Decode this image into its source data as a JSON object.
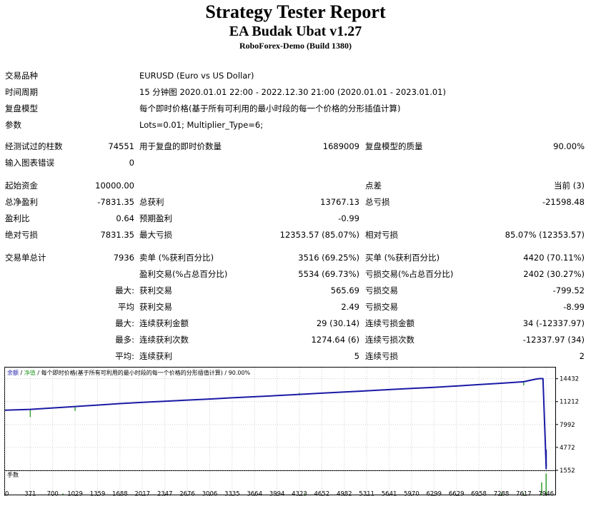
{
  "header": {
    "title": "Strategy Tester Report",
    "expert": "EA Budak Ubat v1.27",
    "server": "RoboForex-Demo (Build 1380)"
  },
  "settings": {
    "symbol_label": "交易品种",
    "symbol": "EURUSD (Euro vs US Dollar)",
    "period_label": "时间周期",
    "period": "15 分钟图 2020.01.01 22:00 - 2022.12.30 21:00 (2020.01.01 - 2023.01.01)",
    "model_label": "复盘模型",
    "model": "每个即时价格(基于所有可利用的最小时段的每一个价格的分形插值计算)",
    "params_label": "参数",
    "params": "Lots=0.01; Multiplier_Type=6;"
  },
  "quality": {
    "bars_label": "经测试过的柱数",
    "bars": "74551",
    "ticks_label": "用于复盘的即时价数量",
    "ticks": "1689009",
    "quality_label": "复盘模型的质量",
    "quality": "90.00%",
    "errors_label": "输入图表错误",
    "errors": "0"
  },
  "results": {
    "deposit_label": "起始资金",
    "deposit": "10000.00",
    "spread_label": "点差",
    "spread": "当前 (3)",
    "net_label": "总净盈利",
    "net": "-7831.35",
    "gross_profit_label": "总获利",
    "gross_profit": "13767.13",
    "gross_loss_label": "总亏损",
    "gross_loss": "-21598.48",
    "pf_label": "盈利比",
    "pf": "0.64",
    "payoff_label": "预期盈利",
    "payoff": "-0.99",
    "abs_dd_label": "绝对亏损",
    "abs_dd": "7831.35",
    "max_dd_label": "最大亏损",
    "max_dd": "12353.57 (85.07%)",
    "rel_dd_label": "相对亏损",
    "rel_dd": "85.07% (12353.57)"
  },
  "trades": {
    "total_label": "交易单总计",
    "total": "7936",
    "short_label": "卖单 (%获利百分比)",
    "short": "3516 (69.25%)",
    "long_label": "买单 (%获利百分比)",
    "long": "4420 (70.11%)",
    "win_label": "盈利交易(%占总百分比)",
    "win": "5534 (69.73%)",
    "loss_label": "亏损交易(%占总百分比)",
    "loss": "2402 (30.27%)",
    "largest_label": "最大:",
    "largest_win_label": "获利交易",
    "largest_win": "565.69",
    "largest_loss_label": "亏损交易",
    "largest_loss": "-799.52",
    "average_label": "平均",
    "avg_win_label": "获利交易",
    "avg_win": "2.49",
    "avg_loss_label": "亏损交易",
    "avg_loss": "-8.99",
    "max_label": "最大:",
    "max_consec_win_label": "连续获利金额",
    "max_consec_win": "29 (30.14)",
    "max_consec_loss_label": "连续亏损金额",
    "max_consec_loss": "34 (-12337.97)",
    "maximal_label": "最多:",
    "maximal_win_label": "连续获利次数",
    "maximal_win": "1274.64 (6)",
    "maximal_loss_label": "连续亏损次数",
    "maximal_loss": "-12337.97 (34)",
    "avgc_label": "平均:",
    "avgc_win_label": "连续获利",
    "avgc_win": "5",
    "avgc_loss_label": "连续亏损",
    "avgc_loss": "2"
  },
  "chart_data": {
    "type": "line",
    "legend": [
      "余额",
      "/",
      "净值",
      "/",
      "每个即时价格(基于所有可利用的最小时段的每一个价格的分形插值计算)",
      "/",
      "90.00%"
    ],
    "legend_colors": [
      "#1a1aa6",
      "#000000",
      "#2e9e2e",
      "#000000",
      "#000000",
      "#000000",
      "#000000"
    ],
    "balance_color": "#1a1aa6",
    "equity_color": "#2e9e2e",
    "volume_label": "手数",
    "ylim": [
      1552,
      16000
    ],
    "yticks": [
      14432,
      11212,
      7992,
      4772,
      1552
    ],
    "xlim": [
      0,
      8080
    ],
    "xticks": [
      0,
      371,
      700,
      1029,
      1359,
      1688,
      2017,
      2347,
      2676,
      3006,
      3335,
      3664,
      3994,
      4323,
      4652,
      4982,
      5311,
      5641,
      5970,
      6299,
      6629,
      6958,
      7288,
      7617,
      7946
    ],
    "balance": {
      "x": [
        0,
        371,
        700,
        1029,
        1359,
        1688,
        2017,
        2347,
        2676,
        3006,
        3335,
        3664,
        3994,
        4323,
        4652,
        4982,
        5311,
        5641,
        5970,
        6299,
        6629,
        6958,
        7288,
        7617,
        7700,
        7800,
        7860,
        7900,
        7946
      ],
      "y": [
        10000,
        10120,
        10320,
        10520,
        10720,
        10930,
        11100,
        11260,
        11420,
        11580,
        11750,
        11900,
        12060,
        12230,
        12400,
        12560,
        12730,
        12900,
        13060,
        13220,
        13400,
        13600,
        13790,
        14000,
        14180,
        14380,
        14450,
        14420,
        2170
      ]
    },
    "equity_drops": [
      {
        "x": 371,
        "y": 9050
      },
      {
        "x": 1029,
        "y": 9900
      },
      {
        "x": 4323,
        "y": 12450
      },
      {
        "x": 7288,
        "y": 13900
      },
      {
        "x": 7617,
        "y": 13500
      },
      {
        "x": 7946,
        "y": 1700
      }
    ],
    "volume_spikes": [
      {
        "x": 850,
        "v": 0.05
      },
      {
        "x": 4400,
        "v": 0.06
      },
      {
        "x": 7290,
        "v": 0.08
      },
      {
        "x": 7610,
        "v": 0.1
      },
      {
        "x": 7880,
        "v": 0.55
      },
      {
        "x": 7946,
        "v": 0.95
      }
    ]
  }
}
